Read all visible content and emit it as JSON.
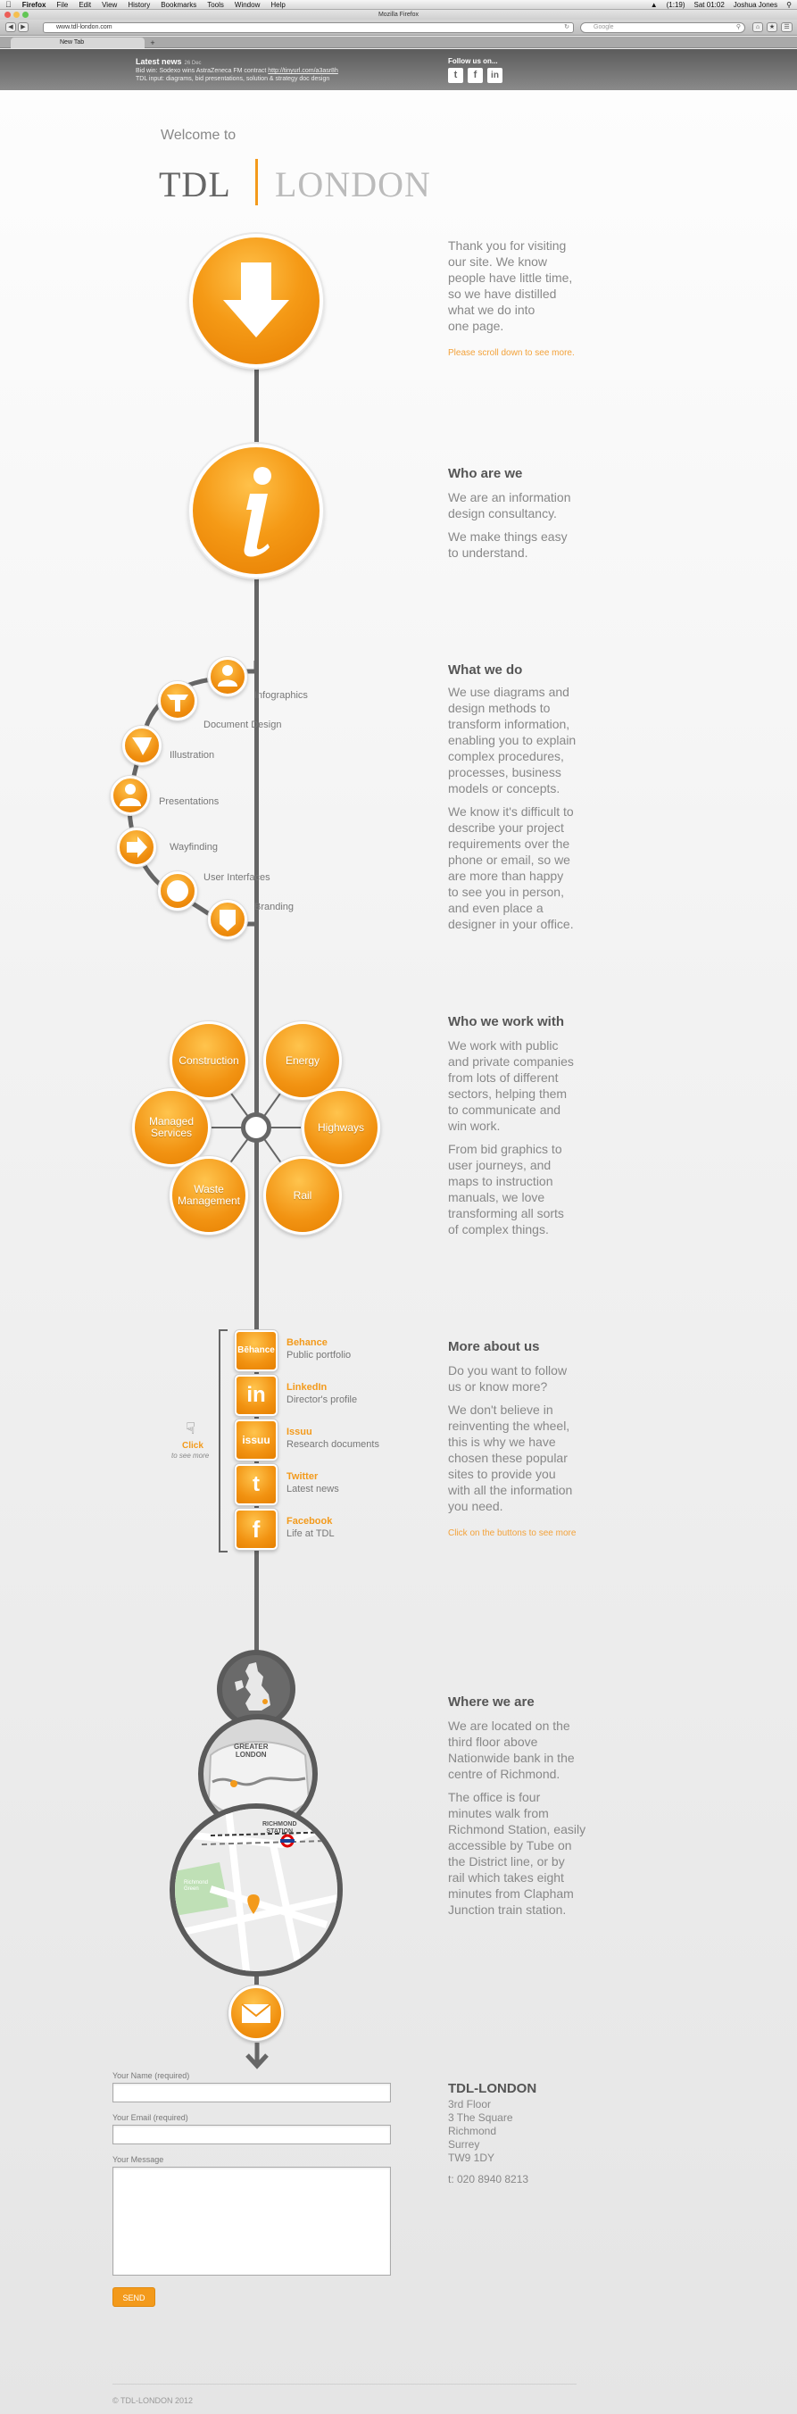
{
  "os": {
    "menu": [
      "Firefox",
      "File",
      "Edit",
      "View",
      "History",
      "Bookmarks",
      "Tools",
      "Window",
      "Help"
    ],
    "battery": "(1:19)",
    "clock": "Sat 01:02",
    "user": "Joshua Jones"
  },
  "browser": {
    "window_title": "Mozilla Firefox",
    "url": "www.tdl-london.com",
    "search_placeholder": "Google",
    "tab_label": "New Tab",
    "new_tab_symbol": "+"
  },
  "header": {
    "news_title": "Latest news",
    "news_date": "26 Dec",
    "news_line1_prefix": "Bid win: Sodexo wins AstraZeneca FM contract",
    "news_line1_link": "http://tinyurl.com/a3asr8h",
    "news_line2": "TDL input: diagrams, bid presentations, solution & strategy doc design",
    "follow_label": "Follow us on...",
    "social": [
      {
        "name": "twitter",
        "glyph": "t"
      },
      {
        "name": "facebook",
        "glyph": "f"
      },
      {
        "name": "linkedin",
        "glyph": "in"
      }
    ]
  },
  "hero": {
    "welcome": "Welcome to",
    "logo_left": "TDL",
    "logo_right": "LONDON"
  },
  "intro": {
    "text": [
      "Thank you for visiting",
      "our site. We know",
      "people have little time,",
      "so we have distilled",
      "what we do into",
      "one page."
    ],
    "scroll_hint": "Please scroll down to see more."
  },
  "who_we_are": {
    "heading": "Who are we",
    "p1": [
      "We are an information",
      "design consultancy."
    ],
    "p2": [
      "We make things easy",
      "to understand."
    ]
  },
  "what_we_do": {
    "heading": "What we do",
    "p1": [
      "We use diagrams and",
      "design methods to",
      "transform information,",
      "enabling you to explain",
      "complex procedures,",
      "processes, business",
      "models or concepts."
    ],
    "p2": [
      "We know it's difficult to",
      "describe your project",
      "requirements over the",
      "phone or email, so we",
      "are more than happy",
      "to see you in person,",
      "and even place a",
      "designer in your office."
    ],
    "services": [
      "Infographics",
      "Document Design",
      "Illustration",
      "Presentations",
      "Wayfinding",
      "User Interfaces",
      "Branding"
    ]
  },
  "who_we_work_with": {
    "heading": "Who we work with",
    "p1": [
      "We work with public",
      "and private companies",
      "from lots of different",
      "sectors, helping them",
      "to communicate and",
      "win work."
    ],
    "p2": [
      "From bid graphics to",
      "user journeys, and",
      "maps to instruction",
      "manuals, we love",
      "transforming all sorts",
      "of complex things."
    ],
    "sectors": {
      "construction": "Construction",
      "energy": "Energy",
      "managed": "Managed Services",
      "highways": "Highways",
      "waste": "Waste Management",
      "rail": "Rail"
    }
  },
  "more_about_us": {
    "heading": "More about us",
    "p1": [
      "Do you want to follow",
      "us or know more?"
    ],
    "p2": [
      "We don't believe in",
      "reinventing the wheel,",
      "this is why we have",
      "chosen these popular",
      "sites to provide you",
      "with all the information",
      "you need."
    ],
    "click_hint": "Click on the buttons to see more",
    "click_label": "Click",
    "click_sub": "to see more",
    "links": [
      {
        "title": "Behance",
        "sub": "Public portfolio",
        "glyph": "Bēhance"
      },
      {
        "title": "LinkedIn",
        "sub": "Director's profile",
        "glyph": "in"
      },
      {
        "title": "Issuu",
        "sub": "Research documents",
        "glyph": "issuu"
      },
      {
        "title": "Twitter",
        "sub": "Latest news",
        "glyph": "t"
      },
      {
        "title": "Facebook",
        "sub": "Life at TDL",
        "glyph": "f"
      }
    ]
  },
  "where_we_are": {
    "heading": "Where we are",
    "p1": [
      "We are located on the",
      "third floor above",
      "Nationwide bank in the",
      "centre of Richmond."
    ],
    "p2": [
      "The office is four",
      "minutes walk from",
      "Richmond Station, easily",
      "accessible by Tube on",
      "the District line, or by",
      "rail which takes eight",
      "minutes from Clapham",
      "Junction train station."
    ],
    "map_greater_london": [
      "GREATER",
      "LONDON"
    ],
    "map_richmond_station": [
      "RICHMOND",
      "STATION"
    ],
    "map_park": [
      "Richmond",
      "Green"
    ]
  },
  "contact": {
    "name_label": "Your Name (required)",
    "email_label": "Your Email (required)",
    "message_label": "Your Message",
    "send_label": "SEND",
    "company": "TDL-LONDON",
    "address": [
      "3rd Floor",
      "3 The Square",
      "Richmond",
      "Surrey",
      "TW9 1DY"
    ],
    "phone": "t: 020 8940 8213"
  },
  "footer": {
    "copyright": "© TDL-LONDON 2012"
  },
  "colors": {
    "accent": "#f39a1b",
    "spine": "#666666"
  }
}
